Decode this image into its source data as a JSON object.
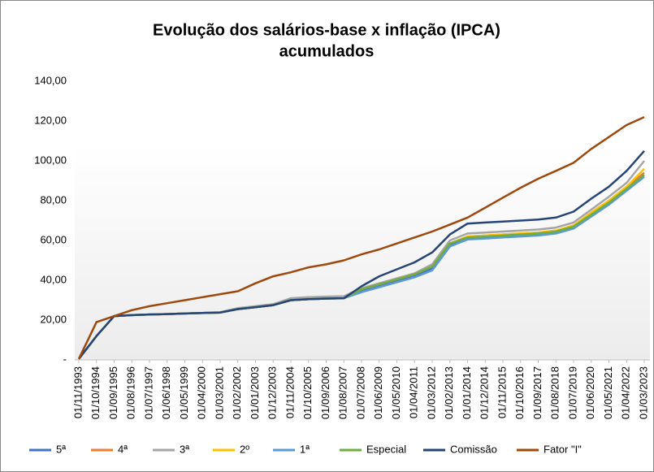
{
  "chart_data": {
    "type": "line",
    "title": "Evolução dos salários-base x inflação (IPCA)",
    "subtitle": "acumulados",
    "categories": [
      "01/11/1993",
      "01/10/1994",
      "01/09/1995",
      "01/08/1996",
      "01/07/1997",
      "01/06/1998",
      "01/05/1999",
      "01/04/2000",
      "01/03/2001",
      "01/02/2002",
      "01/01/2003",
      "01/12/2003",
      "01/11/2004",
      "01/10/2005",
      "01/09/2006",
      "01/08/2007",
      "01/07/2008",
      "01/06/2009",
      "01/05/2010",
      "01/04/2011",
      "01/03/2012",
      "01/02/2013",
      "01/01/2014",
      "01/12/2014",
      "01/11/2015",
      "01/10/2016",
      "01/09/2017",
      "01/08/2018",
      "01/07/2019",
      "01/06/2020",
      "01/05/2021",
      "01/04/2022",
      "01/03/2023"
    ],
    "series": [
      {
        "name": "5ª",
        "color": "#4472c4",
        "values": [
          0.5,
          12,
          22,
          22.5,
          22.8,
          23,
          23.3,
          23.6,
          23.8,
          25.5,
          26.5,
          27.5,
          30,
          30.5,
          30.8,
          31,
          35,
          37.5,
          40,
          42.5,
          46,
          58,
          61,
          61.5,
          62,
          62.5,
          63,
          64,
          66.5,
          72.5,
          78.5,
          85.5,
          93
        ]
      },
      {
        "name": "4ª",
        "color": "#ed7d31",
        "values": [
          0.5,
          12,
          22,
          22.5,
          22.8,
          23,
          23.3,
          23.6,
          23.8,
          25.5,
          26.5,
          27.5,
          30,
          30.5,
          30.8,
          31,
          35.5,
          38,
          40.5,
          43,
          47,
          58.5,
          62,
          62.5,
          63,
          63.5,
          64,
          65,
          67.5,
          74,
          80,
          87,
          94
        ]
      },
      {
        "name": "3ª",
        "color": "#a5a5a5",
        "values": [
          0.5,
          12,
          22,
          22.5,
          22.8,
          23,
          23.3,
          23.6,
          24,
          26,
          27,
          28,
          31,
          31.5,
          31.8,
          32,
          36,
          38.5,
          41,
          43.5,
          48,
          60,
          63.5,
          64,
          64.5,
          65,
          65.5,
          66.5,
          69,
          75.5,
          82,
          89,
          100
        ]
      },
      {
        "name": "2º",
        "color": "#ffc000",
        "values": [
          0.5,
          12,
          22,
          22.5,
          22.8,
          23,
          23.3,
          23.6,
          23.8,
          25.5,
          26.5,
          27.5,
          30,
          30.5,
          30.8,
          31,
          35.5,
          38,
          40.5,
          43,
          47,
          58.5,
          62,
          62.5,
          63,
          63.5,
          64,
          65,
          67.5,
          74,
          80,
          87,
          96
        ]
      },
      {
        "name": "1ª",
        "color": "#5b9bd5",
        "values": [
          0.5,
          12,
          22,
          22.5,
          22.8,
          23,
          23.3,
          23.6,
          23.8,
          25.5,
          26.5,
          27.5,
          30,
          30.5,
          30.8,
          31,
          34,
          36.5,
          39,
          41.5,
          45,
          57,
          60.5,
          61,
          61.5,
          62,
          62.5,
          63.5,
          66,
          72,
          78,
          85,
          92
        ]
      },
      {
        "name": "Especial",
        "color": "#70ad47",
        "values": [
          0.5,
          12,
          22,
          22.5,
          22.8,
          23,
          23.3,
          23.6,
          23.8,
          25.5,
          26.5,
          27.5,
          30,
          30.5,
          30.8,
          31,
          35.5,
          38,
          40.5,
          43,
          47,
          58.5,
          61.5,
          62,
          62.5,
          63,
          63.5,
          64.5,
          67,
          73,
          79,
          86,
          93
        ]
      },
      {
        "name": "Comissão",
        "color": "#264478",
        "values": [
          0.5,
          12,
          22,
          22.5,
          22.8,
          23,
          23.3,
          23.6,
          23.8,
          25.5,
          26.5,
          27.5,
          30,
          30.5,
          30.8,
          31,
          37,
          42,
          45.5,
          49,
          54,
          63,
          68.5,
          69,
          69.5,
          70,
          70.5,
          71.5,
          74.5,
          81,
          87,
          95,
          105
        ]
      },
      {
        "name": "Fator \"I\"",
        "color": "#9e480e",
        "values": [
          0.5,
          19,
          22,
          25,
          27,
          28.5,
          30,
          31.5,
          33,
          34.5,
          38.5,
          42,
          44,
          46.5,
          48,
          50,
          53,
          55.5,
          58.5,
          61.5,
          64.5,
          68,
          71.5,
          76.5,
          81.5,
          86.5,
          91,
          95,
          99,
          106,
          112,
          118,
          122
        ]
      }
    ],
    "ylim": [
      0,
      140
    ],
    "yticks": [
      {
        "value": 0,
        "label": "-"
      },
      {
        "value": 20,
        "label": "20,00"
      },
      {
        "value": 40,
        "label": "40,00"
      },
      {
        "value": 60,
        "label": "60,00"
      },
      {
        "value": 80,
        "label": "80,00"
      },
      {
        "value": 100,
        "label": "100,00"
      },
      {
        "value": 120,
        "label": "120,00"
      },
      {
        "value": 140,
        "label": "140,00"
      }
    ],
    "legend": "bottom"
  }
}
